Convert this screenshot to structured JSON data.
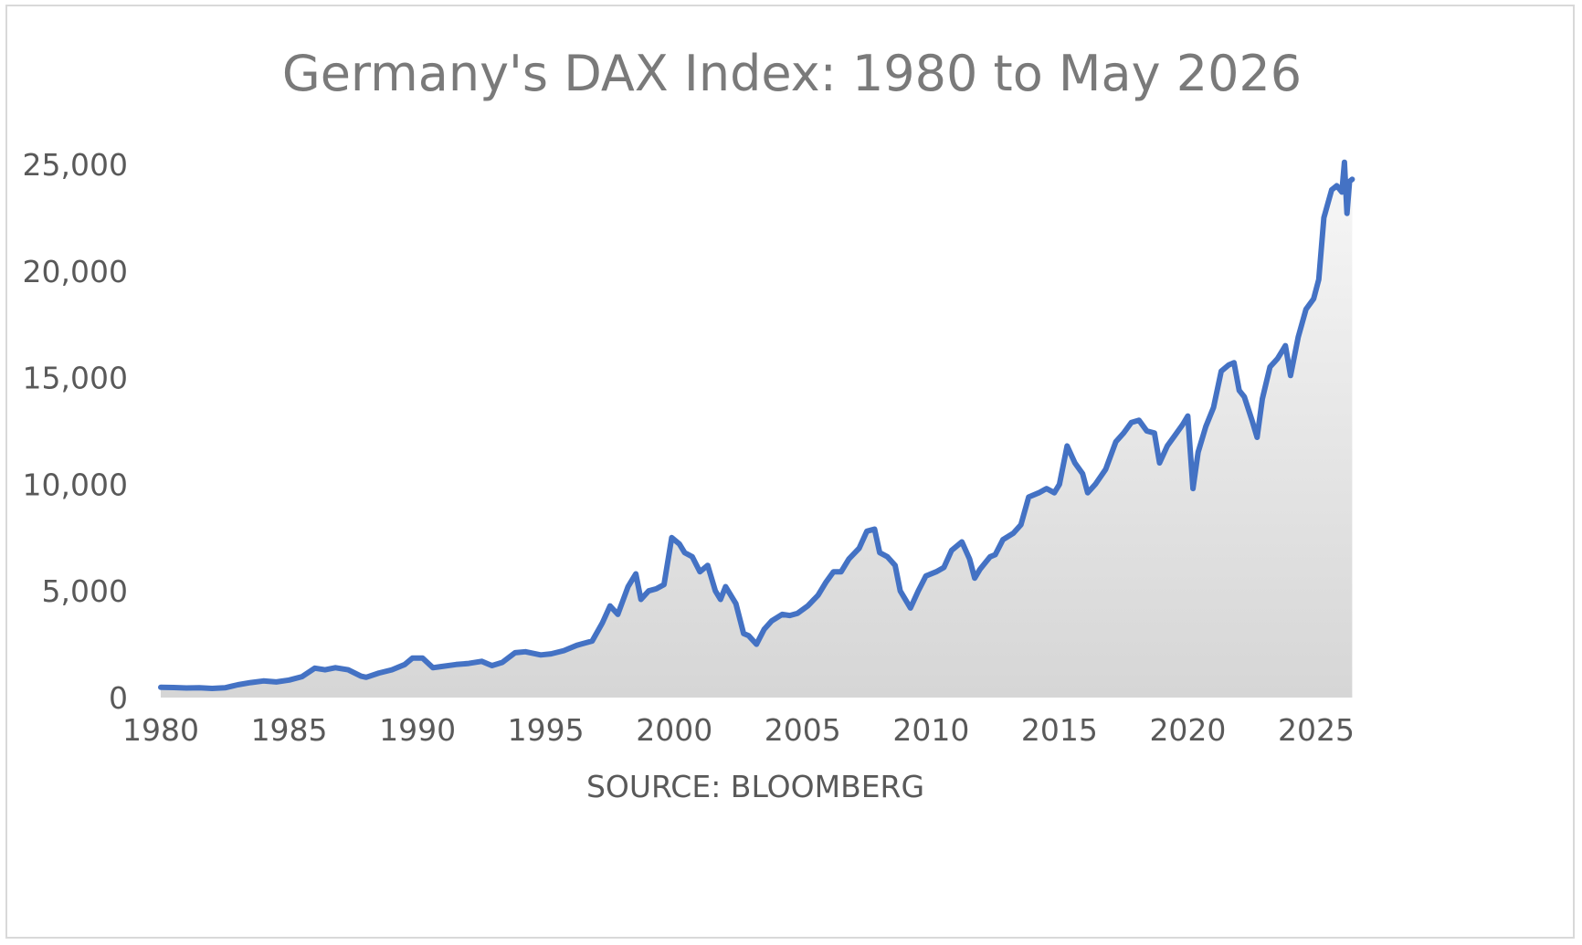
{
  "chart_data": {
    "type": "area",
    "title": "Germany's DAX Index: 1980 to May 2026",
    "xlabel": "SOURCE: BLOOMBERG",
    "ylabel": "",
    "xlim": [
      1980,
      2026.4
    ],
    "ylim": [
      0,
      25000
    ],
    "x_ticks": [
      1980,
      1985,
      1990,
      1995,
      2000,
      2005,
      2010,
      2015,
      2020,
      2025
    ],
    "y_ticks": [
      0,
      5000,
      10000,
      15000,
      20000,
      25000
    ],
    "y_tick_labels": [
      "0",
      "5,000",
      "10,000",
      "15,000",
      "20,000",
      "25,000"
    ],
    "grid": false,
    "legend": "none",
    "colors": {
      "line": "#4472c4",
      "fill_top": "#f7f7f7",
      "fill_bottom": "#d6d6d6",
      "title": "#7a7a7a",
      "text": "#595959"
    },
    "series": [
      {
        "x": [
          1980.0,
          1980.5,
          1981.0,
          1981.5,
          1982.0,
          1982.5,
          1983.0,
          1983.5,
          1984.0,
          1984.5,
          1985.0,
          1985.5,
          1986.0,
          1986.4,
          1986.8,
          1987.3,
          1987.8,
          1988.0,
          1988.5,
          1989.0,
          1989.5,
          1989.8,
          1990.2,
          1990.6,
          1990.9,
          1991.5,
          1992.0,
          1992.5,
          1992.9,
          1993.3,
          1993.8,
          1994.2,
          1994.8,
          1995.2,
          1995.7,
          1996.2,
          1996.8,
          1997.2,
          1997.5,
          1997.8,
          1998.2,
          1998.5,
          1998.7,
          1999.0,
          1999.3,
          1999.6,
          1999.9,
          2000.2,
          2000.4,
          2000.7,
          2001.0,
          2001.3,
          2001.6,
          2001.8,
          2002.0,
          2002.4,
          2002.7,
          2002.9,
          2003.2,
          2003.5,
          2003.8,
          2004.2,
          2004.5,
          2004.8,
          2005.2,
          2005.6,
          2005.9,
          2006.2,
          2006.5,
          2006.8,
          2007.2,
          2007.5,
          2007.8,
          2008.0,
          2008.3,
          2008.6,
          2008.8,
          2009.2,
          2009.5,
          2009.8,
          2010.2,
          2010.5,
          2010.8,
          2011.2,
          2011.5,
          2011.7,
          2011.9,
          2012.3,
          2012.5,
          2012.8,
          2013.2,
          2013.5,
          2013.8,
          2014.2,
          2014.5,
          2014.8,
          2015.0,
          2015.3,
          2015.6,
          2015.9,
          2016.1,
          2016.4,
          2016.8,
          2017.2,
          2017.5,
          2017.8,
          2018.1,
          2018.4,
          2018.7,
          2018.9,
          2019.2,
          2019.5,
          2019.8,
          2020.0,
          2020.2,
          2020.4,
          2020.7,
          2021.0,
          2021.3,
          2021.6,
          2021.8,
          2022.0,
          2022.2,
          2022.5,
          2022.7,
          2022.9,
          2023.2,
          2023.5,
          2023.8,
          2024.0,
          2024.3,
          2024.6,
          2024.9,
          2025.1,
          2025.3,
          2025.6,
          2025.8,
          2026.0,
          2026.1,
          2026.2,
          2026.3,
          2026.4
        ],
        "values": [
          480,
          470,
          450,
          460,
          430,
          460,
          600,
          700,
          780,
          730,
          820,
          980,
          1380,
          1300,
          1400,
          1300,
          1000,
          950,
          1150,
          1300,
          1550,
          1850,
          1850,
          1400,
          1450,
          1550,
          1600,
          1700,
          1500,
          1650,
          2100,
          2150,
          2000,
          2050,
          2200,
          2450,
          2650,
          3500,
          4300,
          3900,
          5200,
          5800,
          4600,
          5000,
          5100,
          5300,
          7500,
          7200,
          6800,
          6600,
          5900,
          6200,
          5000,
          4600,
          5200,
          4400,
          3000,
          2900,
          2500,
          3200,
          3600,
          3900,
          3850,
          3950,
          4300,
          4800,
          5400,
          5900,
          5900,
          6500,
          7000,
          7800,
          7900,
          6800,
          6600,
          6200,
          5000,
          4200,
          5000,
          5700,
          5900,
          6100,
          6900,
          7300,
          6500,
          5600,
          6000,
          6600,
          6700,
          7400,
          7700,
          8100,
          9400,
          9600,
          9800,
          9600,
          10000,
          11800,
          11000,
          10500,
          9600,
          10000,
          10700,
          12000,
          12400,
          12900,
          13000,
          12500,
          12400,
          11000,
          11800,
          12300,
          12800,
          13200,
          9800,
          11500,
          12700,
          13600,
          15300,
          15600,
          15700,
          14400,
          14100,
          13000,
          12200,
          14000,
          15500,
          15900,
          16500,
          15100,
          16900,
          18200,
          18700,
          19600,
          22500,
          23800,
          24000,
          23700,
          25100,
          22700,
          24200,
          24300
        ]
      }
    ]
  }
}
